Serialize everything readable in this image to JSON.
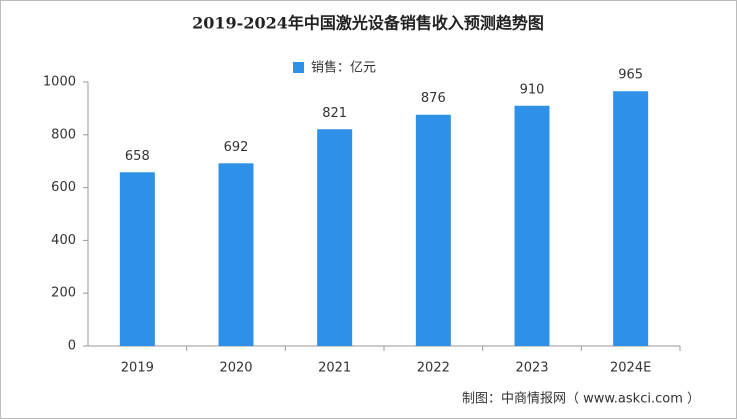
{
  "chart_data": {
    "type": "bar",
    "title": "2019-2024年中国激光设备销售收入预测趋势图",
    "categories": [
      "2019",
      "2020",
      "2021",
      "2022",
      "2023",
      "2024E"
    ],
    "series": [
      {
        "name": "销售：亿元",
        "color": "#2f90e8",
        "values": [
          658,
          692,
          821,
          876,
          910,
          965
        ]
      }
    ],
    "ylim": [
      0,
      1000
    ],
    "yticks": [
      0,
      200,
      400,
      600,
      800,
      1000
    ],
    "source": "制图：中商情报网（ www.askci.com ）"
  }
}
